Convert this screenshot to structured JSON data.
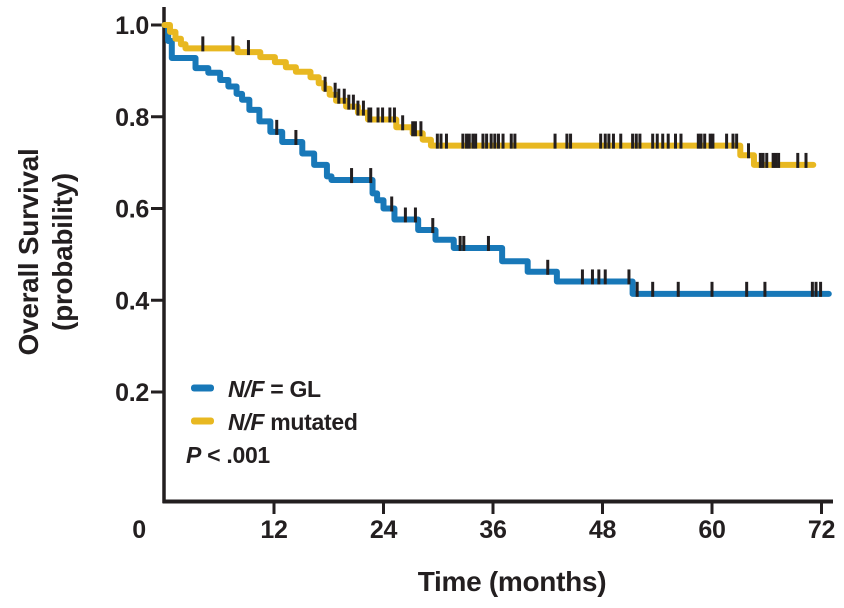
{
  "figure": {
    "ylabel_line1": "Overall Survival",
    "ylabel_line2": "(probability)",
    "xlabel": "Time (months)",
    "p_value": {
      "italic": "P",
      "rest": " < .001"
    },
    "text_color": "#231f20",
    "legend": [
      {
        "key": "gl",
        "color": "#1878b8",
        "label_italic": "N/F",
        "label_rest": " = GL"
      },
      {
        "key": "mutated",
        "color": "#e8b821",
        "label_italic": "N/F",
        "label_rest": " mutated"
      }
    ]
  },
  "chart_data": {
    "type": "line",
    "subtype": "kaplan-meier-step",
    "title": "",
    "xlabel": "Time (months)",
    "ylabel": "Overall Survival (probability)",
    "xlim": [
      0,
      72
    ],
    "ylim": [
      0,
      1.0
    ],
    "xticks": [
      0,
      12,
      24,
      36,
      48,
      60,
      72
    ],
    "yticks": [
      0.2,
      0.4,
      0.6,
      0.8,
      1.0
    ],
    "grid": false,
    "legend_position": "lower-left",
    "p_value_text": "P < .001",
    "censor_color": "#231f20",
    "series": [
      {
        "name": "N/F = GL",
        "color": "#1878b8",
        "end_time": 72.8,
        "steps": [
          [
            0,
            1.0
          ],
          [
            0.4,
            0.965
          ],
          [
            0.8,
            0.928
          ],
          [
            3.4,
            0.906
          ],
          [
            4.8,
            0.896
          ],
          [
            6.1,
            0.88
          ],
          [
            7.0,
            0.866
          ],
          [
            7.9,
            0.85
          ],
          [
            8.5,
            0.837
          ],
          [
            9.3,
            0.815
          ],
          [
            10.4,
            0.79
          ],
          [
            11.6,
            0.767
          ],
          [
            12.9,
            0.745
          ],
          [
            15.1,
            0.72
          ],
          [
            16.4,
            0.695
          ],
          [
            17.8,
            0.67
          ],
          [
            18.3,
            0.662
          ],
          [
            22.8,
            0.633
          ],
          [
            23.3,
            0.618
          ],
          [
            24.0,
            0.6
          ],
          [
            25.2,
            0.576
          ],
          [
            27.8,
            0.553
          ],
          [
            29.7,
            0.532
          ],
          [
            31.7,
            0.514
          ],
          [
            37.0,
            0.485
          ],
          [
            39.8,
            0.462
          ],
          [
            43.0,
            0.441
          ],
          [
            51.3,
            0.414
          ]
        ],
        "censor_times": [
          12.3,
          14.4,
          20.5,
          22.6,
          24.9,
          26.4,
          27.5,
          29.4,
          32.4,
          32.8,
          35.5,
          42.0,
          45.8,
          46.9,
          47.6,
          48.3,
          50.9,
          51.8,
          53.5,
          56.3,
          60.0,
          63.8,
          65.8,
          71.0,
          71.4,
          71.9
        ]
      },
      {
        "name": "N/F mutated",
        "color": "#e8b821",
        "end_time": 71.1,
        "steps": [
          [
            0,
            1.0
          ],
          [
            0.6,
            0.985
          ],
          [
            1.2,
            0.97
          ],
          [
            1.8,
            0.958
          ],
          [
            2.3,
            0.949
          ],
          [
            8.0,
            0.941
          ],
          [
            10.5,
            0.93
          ],
          [
            12.1,
            0.919
          ],
          [
            13.3,
            0.908
          ],
          [
            14.4,
            0.898
          ],
          [
            16.0,
            0.886
          ],
          [
            16.9,
            0.873
          ],
          [
            17.5,
            0.861
          ],
          [
            18.1,
            0.848
          ],
          [
            18.8,
            0.835
          ],
          [
            19.9,
            0.822
          ],
          [
            21.2,
            0.809
          ],
          [
            22.3,
            0.794
          ],
          [
            25.4,
            0.777
          ],
          [
            27.2,
            0.764
          ],
          [
            28.3,
            0.75
          ],
          [
            29.2,
            0.737
          ],
          [
            63.1,
            0.716
          ],
          [
            64.6,
            0.695
          ]
        ],
        "censor_times": [
          4.2,
          7.5,
          9.2,
          17.6,
          18.7,
          19.1,
          19.7,
          20.2,
          20.7,
          21.2,
          21.8,
          22.4,
          22.6,
          23.4,
          23.9,
          24.7,
          25.2,
          26.1,
          27.2,
          27.5,
          28.1,
          29.9,
          30.3,
          30.9,
          32.7,
          33.1,
          33.4,
          33.8,
          34.1,
          34.9,
          35.3,
          35.8,
          36.2,
          36.6,
          37.1,
          38.0,
          38.4,
          42.8,
          44.1,
          44.5,
          47.8,
          48.3,
          48.7,
          49.2,
          50.0,
          51.3,
          51.7,
          52.1,
          53.5,
          54.0,
          54.6,
          55.2,
          56.0,
          56.6,
          58.5,
          58.8,
          59.2,
          59.8,
          60.1,
          61.6,
          62.3,
          62.7,
          64.0,
          65.3,
          65.6,
          66.0,
          66.7,
          67.0,
          67.3,
          69.4,
          70.3
        ]
      }
    ]
  }
}
